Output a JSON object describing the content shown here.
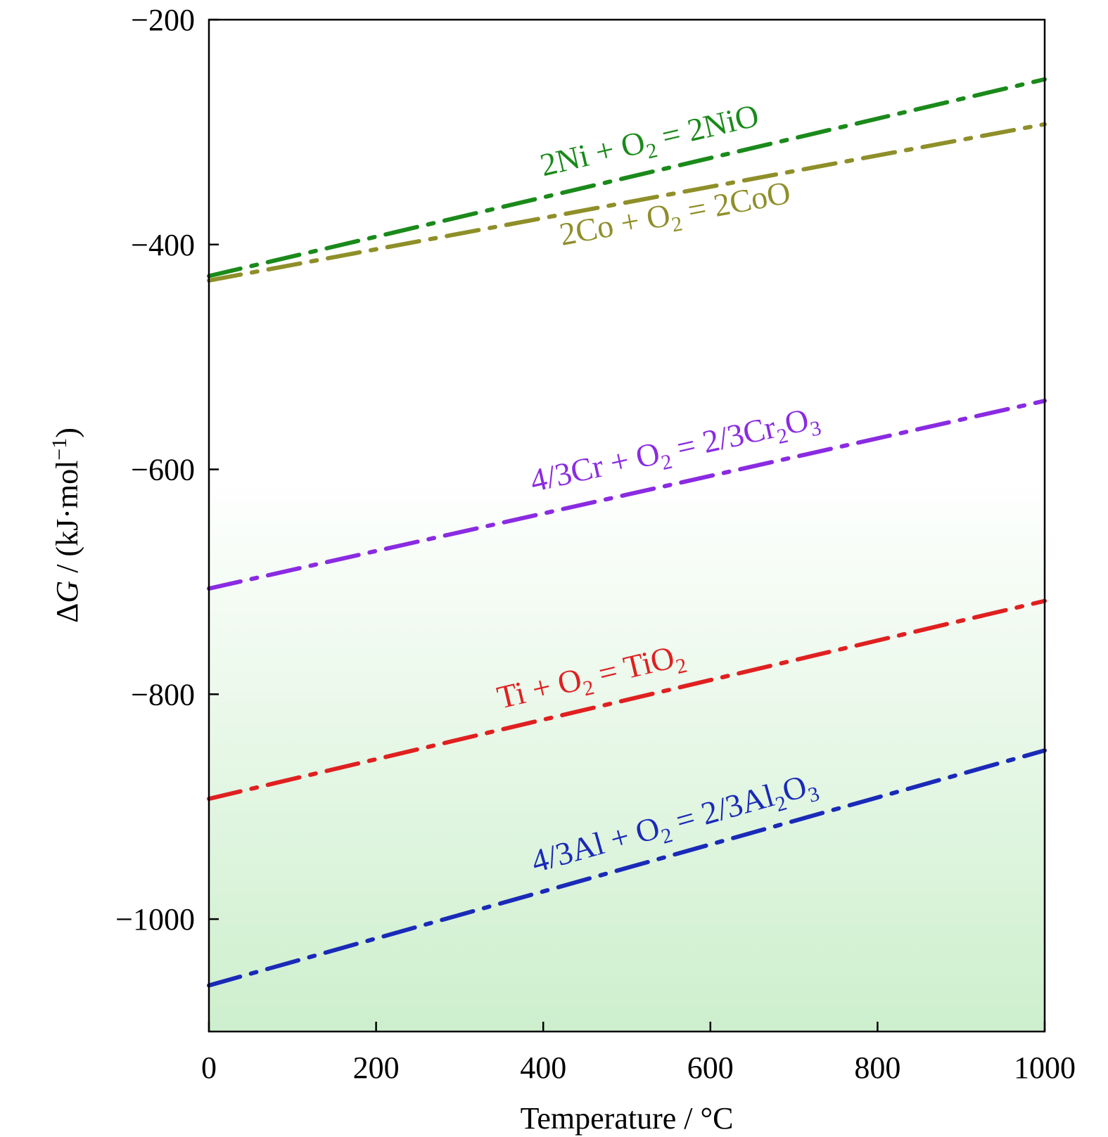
{
  "chart_data": {
    "type": "line",
    "title": "",
    "xlabel": "Temperature / °C",
    "ylabel": {
      "delta": "Δ",
      "var": "G",
      "unit_open": " / (kJ·mol",
      "unit_exp": "−1",
      "unit_close": ")"
    },
    "xlim": [
      0,
      1000
    ],
    "ylim": [
      -1100,
      -200
    ],
    "xticks": [
      0,
      200,
      400,
      600,
      800,
      1000
    ],
    "yticks": [
      -200,
      -400,
      -600,
      -800,
      -1000
    ],
    "ytick_labels": [
      "−200",
      "−400",
      "−600",
      "−800",
      "−1000"
    ],
    "xtick_labels": [
      "0",
      "200",
      "400",
      "600",
      "800",
      "1000"
    ],
    "grid": false,
    "line_style": "dash-dot",
    "series": [
      {
        "name": "2Ni + O2 = 2NiO",
        "label_parts": [
          [
            "2Ni + O",
            ""
          ],
          [
            "2",
            "sub"
          ],
          [
            " = 2NiO",
            ""
          ]
        ],
        "color": "#1a8a1a",
        "x": [
          0,
          1000
        ],
        "y": [
          -428,
          -253
        ]
      },
      {
        "name": "2Co + O2 = 2CoO",
        "label_parts": [
          [
            "2Co + O",
            ""
          ],
          [
            "2",
            "sub"
          ],
          [
            " = 2CoO",
            ""
          ]
        ],
        "color": "#8f8f2a",
        "x": [
          0,
          1000
        ],
        "y": [
          -432,
          -293
        ]
      },
      {
        "name": "4/3Cr + O2 = 2/3Cr2O3",
        "label_parts": [
          [
            "4/3Cr + O",
            ""
          ],
          [
            "2",
            "sub"
          ],
          [
            " = 2/3Cr",
            ""
          ],
          [
            "2",
            "sub"
          ],
          [
            "O",
            ""
          ],
          [
            "3",
            "sub"
          ]
        ],
        "color": "#8a2be2",
        "x": [
          0,
          1000
        ],
        "y": [
          -706,
          -539
        ]
      },
      {
        "name": "Ti + O2 = TiO2",
        "label_parts": [
          [
            "Ti + O",
            ""
          ],
          [
            "2",
            "sub"
          ],
          [
            " = TiO",
            ""
          ],
          [
            "2",
            "sub"
          ]
        ],
        "color": "#e02020",
        "x": [
          0,
          1000
        ],
        "y": [
          -893,
          -717
        ]
      },
      {
        "name": "4/3Al + O2 = 2/3Al2O3",
        "label_parts": [
          [
            "4/3Al + O",
            ""
          ],
          [
            "2",
            "sub"
          ],
          [
            " = 2/3Al",
            ""
          ],
          [
            "2",
            "sub"
          ],
          [
            "O",
            ""
          ],
          [
            "3",
            "sub"
          ]
        ],
        "color": "#1a2ab8",
        "x": [
          0,
          1000
        ],
        "y": [
          -1059,
          -850
        ]
      }
    ],
    "background_gradient": {
      "top": "#ffffff",
      "bottom": "#cdefcd"
    }
  }
}
